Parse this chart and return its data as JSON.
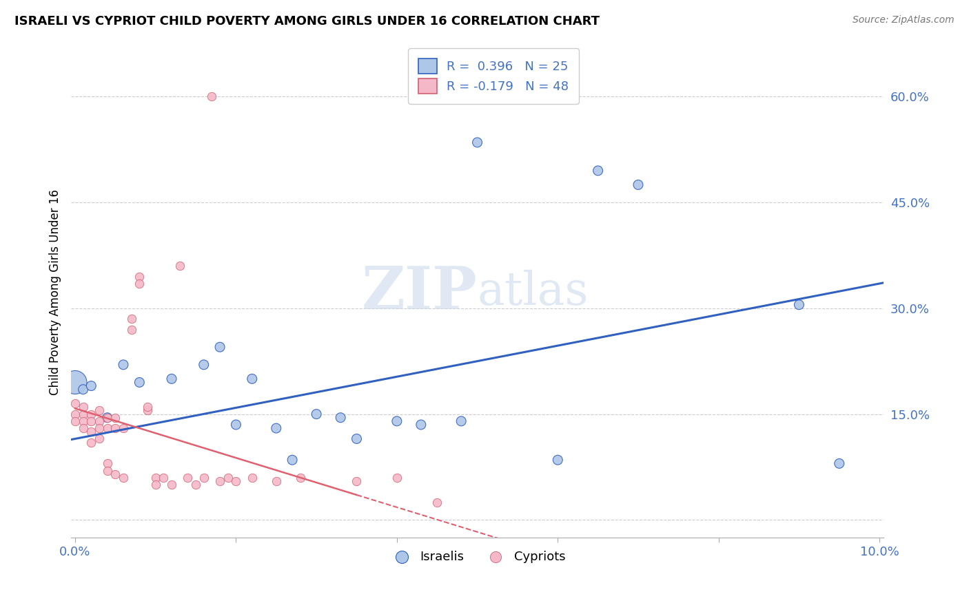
{
  "title": "ISRAELI VS CYPRIOT CHILD POVERTY AMONG GIRLS UNDER 16 CORRELATION CHART",
  "source": "Source: ZipAtlas.com",
  "ylabel": "Child Poverty Among Girls Under 16",
  "watermark_zip": "ZIP",
  "watermark_atlas": "atlas",
  "legend_israeli": "R =  0.396   N = 25",
  "legend_cypriot": "R = -0.179   N = 48",
  "israeli_color": "#aec6e8",
  "cypriot_color": "#f5b8c8",
  "trendline_israeli_color": "#3060c0",
  "trendline_cypriot_color": "#e06070",
  "right_ytick_vals": [
    0.0,
    0.15,
    0.3,
    0.45,
    0.6
  ],
  "right_ytick_labels": [
    "",
    "15.0%",
    "30.0%",
    "45.0%",
    "60.0%"
  ],
  "xmin": -0.0005,
  "xmax": 0.1005,
  "ymin": -0.025,
  "ymax": 0.67,
  "grid_color": "#cccccc",
  "background_color": "#ffffff",
  "israelis_x": [
    0.0,
    0.001,
    0.002,
    0.004,
    0.006,
    0.008,
    0.012,
    0.016,
    0.018,
    0.02,
    0.022,
    0.025,
    0.027,
    0.03,
    0.033,
    0.035,
    0.04,
    0.043,
    0.048,
    0.05,
    0.06,
    0.065,
    0.07,
    0.09,
    0.095
  ],
  "israelis_y": [
    0.195,
    0.185,
    0.19,
    0.145,
    0.22,
    0.195,
    0.2,
    0.22,
    0.245,
    0.135,
    0.2,
    0.13,
    0.085,
    0.15,
    0.145,
    0.115,
    0.14,
    0.135,
    0.14,
    0.535,
    0.085,
    0.495,
    0.475,
    0.305,
    0.08
  ],
  "israelis_size": [
    600,
    100,
    100,
    100,
    100,
    100,
    100,
    100,
    100,
    100,
    100,
    100,
    100,
    100,
    100,
    100,
    100,
    100,
    100,
    100,
    100,
    100,
    100,
    100,
    100
  ],
  "cypriots_x": [
    0.0,
    0.0,
    0.0,
    0.001,
    0.001,
    0.001,
    0.001,
    0.002,
    0.002,
    0.002,
    0.002,
    0.003,
    0.003,
    0.003,
    0.003,
    0.004,
    0.004,
    0.004,
    0.004,
    0.005,
    0.005,
    0.005,
    0.006,
    0.006,
    0.007,
    0.007,
    0.008,
    0.008,
    0.009,
    0.009,
    0.01,
    0.01,
    0.011,
    0.012,
    0.013,
    0.014,
    0.015,
    0.016,
    0.017,
    0.018,
    0.019,
    0.02,
    0.022,
    0.025,
    0.028,
    0.035,
    0.04,
    0.045
  ],
  "cypriots_y": [
    0.165,
    0.15,
    0.14,
    0.16,
    0.15,
    0.14,
    0.13,
    0.15,
    0.14,
    0.125,
    0.11,
    0.155,
    0.14,
    0.13,
    0.115,
    0.145,
    0.13,
    0.08,
    0.07,
    0.145,
    0.13,
    0.065,
    0.13,
    0.06,
    0.285,
    0.27,
    0.345,
    0.335,
    0.155,
    0.16,
    0.06,
    0.05,
    0.06,
    0.05,
    0.36,
    0.06,
    0.05,
    0.06,
    0.6,
    0.055,
    0.06,
    0.055,
    0.06,
    0.055,
    0.06,
    0.055,
    0.06,
    0.025
  ]
}
